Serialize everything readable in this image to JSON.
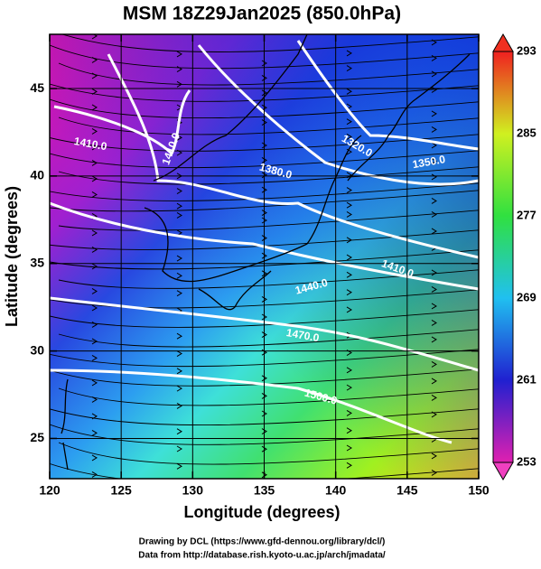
{
  "title": "MSM 18Z29Jan2025 (850.0hPa)",
  "x_axis": {
    "label": "Longitude (degrees)",
    "lim": [
      120,
      150
    ],
    "ticks": [
      120,
      125,
      130,
      135,
      140,
      145,
      150
    ]
  },
  "y_axis": {
    "label": "Latitude  (degrees)",
    "lim": [
      22.7,
      48.1
    ],
    "ticks": [
      25,
      30,
      35,
      40,
      45
    ]
  },
  "colorbar": {
    "lim": [
      253,
      293
    ],
    "ticks": [
      253,
      261,
      269,
      277,
      285,
      293
    ]
  },
  "contour_labels": [
    "1410.0",
    "1410.0",
    "1380.0",
    "1320.0",
    "1350.0",
    "1440.0",
    "1410.0",
    "1470.0",
    "1500.0"
  ],
  "credits": [
    "Drawing by DCL (https://www.gfd-dennou.org/library/dcl/)",
    "Data from http://database.rish.kyoto-u.ac.jp/arch/jmadata/"
  ]
}
